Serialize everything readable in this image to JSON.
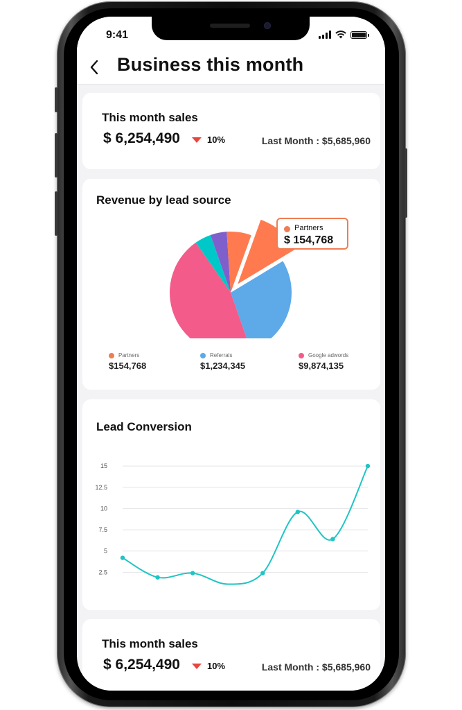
{
  "status_bar": {
    "time": "9:41"
  },
  "nav": {
    "back_icon": "chevron-left-icon",
    "title": "Business this month"
  },
  "sales_card_top": {
    "title": "This month sales",
    "amount": "$ 6,254,490",
    "change": "10%",
    "change_direction": "down",
    "last_month": "Last Month : $5,685,960"
  },
  "revenue_card": {
    "title": "Revenue by lead source",
    "tooltip": {
      "label": "Partners",
      "value": "$ 154,768",
      "color": "#f07c54"
    },
    "legend": [
      {
        "name": "Partners",
        "value": "$154,768",
        "color": "#f07c54"
      },
      {
        "name": "Referrals",
        "value": "$1,234,345",
        "color": "#5ea9e8"
      },
      {
        "name": "Google adwords",
        "value": "$9,874,135",
        "color": "#f35b8a"
      }
    ]
  },
  "lead_card": {
    "title": "Lead Conversion"
  },
  "sales_card_bottom": {
    "title": "This month sales",
    "amount": "$ 6,254,490",
    "change": "10%",
    "change_direction": "down",
    "last_month": "Last Month : $5,685,960"
  },
  "chart_data": [
    {
      "type": "pie",
      "title": "Revenue by lead source",
      "labels": [
        "",
        "",
        "",
        "Partners",
        "Referrals",
        "Google adwords"
      ],
      "values": [
        1,
        1,
        1.5,
        2.5,
        6.5,
        10.5
      ],
      "colors": [
        "#00c8c8",
        "#7f5fcc",
        "#ff7b4f",
        "#ff7b4f",
        "#5ea9e8",
        "#f35b8a"
      ],
      "highlighted": "Partners"
    },
    {
      "type": "line",
      "title": "Lead Conversion",
      "yticks": [
        2.5,
        5,
        7.5,
        10,
        12.5,
        15
      ],
      "ylim": [
        0,
        15.5
      ],
      "x": [
        0,
        1,
        2,
        3,
        4,
        5,
        6,
        7
      ],
      "y": [
        4.2,
        1.9,
        2.4,
        1.1,
        2.4,
        9.6,
        6.4,
        15
      ],
      "markers": [
        true,
        true,
        true,
        false,
        true,
        true,
        true,
        true
      ],
      "color": "#20c4c4",
      "grid": true
    }
  ]
}
